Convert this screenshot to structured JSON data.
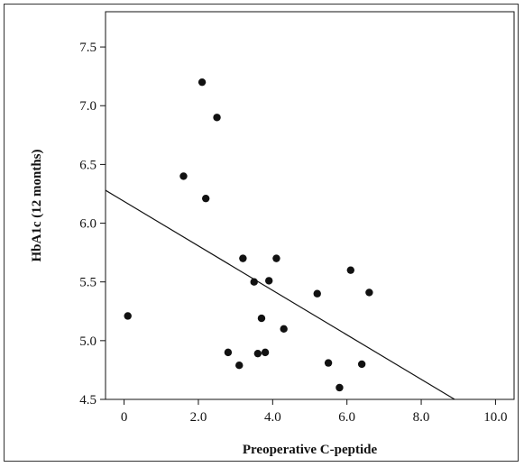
{
  "chart_data": {
    "type": "scatter",
    "title": "",
    "xlabel": "Preoperative C-peptide",
    "ylabel": "HbA1c (12 months)",
    "xlim": [
      -0.5,
      10.5
    ],
    "ylim": [
      4.5,
      7.8
    ],
    "x_ticks": [
      0,
      2.0,
      4.0,
      6.0,
      8.0,
      10.0
    ],
    "x_tick_labels": [
      "0",
      "2.0",
      "4.0",
      "6.0",
      "8.0",
      "10.0"
    ],
    "y_ticks": [
      4.5,
      5.0,
      5.5,
      6.0,
      6.5,
      7.0,
      7.5
    ],
    "y_tick_labels": [
      "4.5",
      "5.0",
      "5.5",
      "6.0",
      "6.5",
      "7.0",
      "7.5"
    ],
    "grid": false,
    "legend": "none",
    "marker_color": "#111111",
    "points": [
      {
        "x": 0.1,
        "y": 5.21
      },
      {
        "x": 1.6,
        "y": 6.4
      },
      {
        "x": 2.1,
        "y": 7.2
      },
      {
        "x": 2.2,
        "y": 6.21
      },
      {
        "x": 2.5,
        "y": 6.9
      },
      {
        "x": 2.8,
        "y": 4.9
      },
      {
        "x": 3.1,
        "y": 4.79
      },
      {
        "x": 3.2,
        "y": 5.7
      },
      {
        "x": 3.5,
        "y": 5.5
      },
      {
        "x": 3.6,
        "y": 4.89
      },
      {
        "x": 3.7,
        "y": 5.19
      },
      {
        "x": 3.8,
        "y": 4.9
      },
      {
        "x": 3.9,
        "y": 5.51
      },
      {
        "x": 4.1,
        "y": 5.7
      },
      {
        "x": 4.3,
        "y": 5.1
      },
      {
        "x": 5.2,
        "y": 5.4
      },
      {
        "x": 5.5,
        "y": 4.81
      },
      {
        "x": 5.8,
        "y": 4.6
      },
      {
        "x": 6.1,
        "y": 5.6
      },
      {
        "x": 6.4,
        "y": 4.8
      },
      {
        "x": 6.6,
        "y": 5.41
      }
    ],
    "fit_line": {
      "x": [
        -0.5,
        8.9
      ],
      "y": [
        6.28,
        4.5
      ]
    }
  }
}
